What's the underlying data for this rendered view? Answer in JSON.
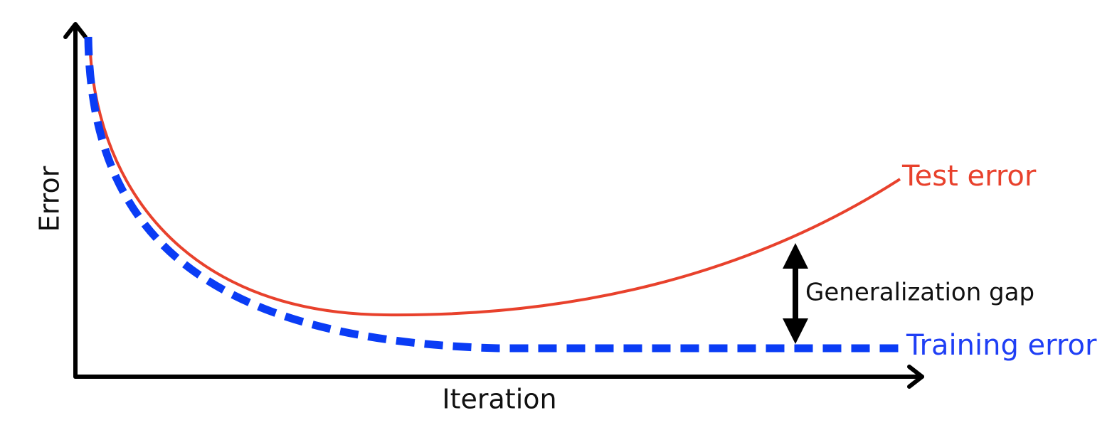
{
  "axes": {
    "x_label": "Iteration",
    "y_label": "Error"
  },
  "curves": [
    {
      "label": "Test error"
    },
    {
      "label": "Training error"
    }
  ],
  "annotation": "Generalization gap"
}
